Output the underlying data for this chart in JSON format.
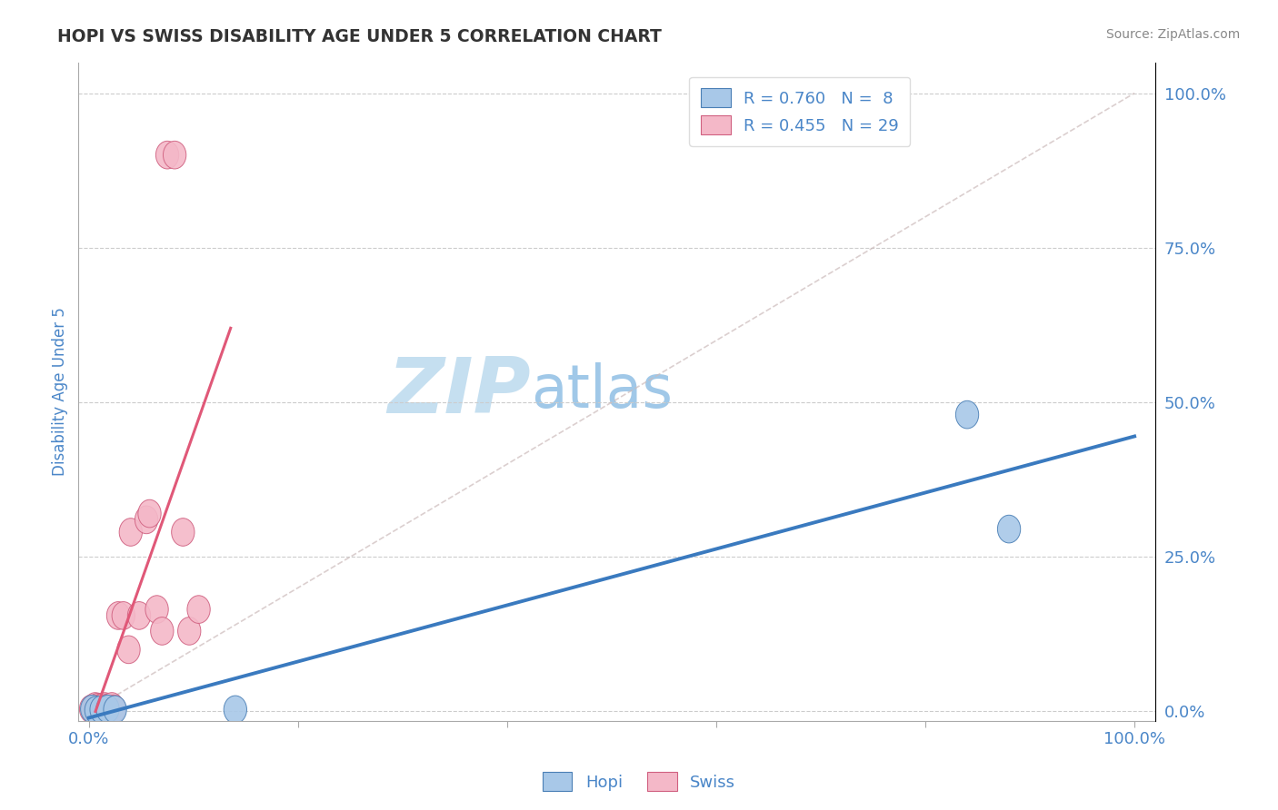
{
  "title": "HOPI VS SWISS DISABILITY AGE UNDER 5 CORRELATION CHART",
  "source": "Source: ZipAtlas.com",
  "ylabel_label": "Disability Age Under 5",
  "y_tick_labels": [
    "0.0%",
    "25.0%",
    "50.0%",
    "75.0%",
    "100.0%"
  ],
  "y_tick_values": [
    0,
    0.25,
    0.5,
    0.75,
    1.0
  ],
  "hopi_color": "#a8c8e8",
  "swiss_color": "#f4b8c8",
  "hopi_edge_color": "#4a7fb5",
  "swiss_edge_color": "#d06080",
  "hopi_line_color": "#3a7abf",
  "swiss_line_color": "#e05878",
  "diagonal_color": "#ccbbbb",
  "hopi_R": 0.76,
  "hopi_N": 8,
  "swiss_R": 0.455,
  "swiss_N": 29,
  "hopi_scatter_x": [
    0.003,
    0.007,
    0.012,
    0.018,
    0.025,
    0.14,
    0.84,
    0.88
  ],
  "hopi_scatter_y": [
    0.004,
    0.002,
    0.003,
    0.004,
    0.003,
    0.003,
    0.48,
    0.295
  ],
  "swiss_scatter_x": [
    0.002,
    0.004,
    0.006,
    0.007,
    0.008,
    0.009,
    0.01,
    0.011,
    0.013,
    0.015,
    0.016,
    0.018,
    0.02,
    0.022,
    0.024,
    0.028,
    0.033,
    0.038,
    0.04,
    0.048,
    0.055,
    0.058,
    0.065,
    0.07,
    0.075,
    0.082,
    0.09,
    0.096,
    0.105
  ],
  "swiss_scatter_y": [
    0.004,
    0.005,
    0.008,
    0.004,
    0.006,
    0.007,
    0.004,
    0.005,
    0.007,
    0.008,
    0.004,
    0.006,
    0.006,
    0.008,
    0.004,
    0.155,
    0.155,
    0.1,
    0.29,
    0.155,
    0.31,
    0.32,
    0.165,
    0.13,
    0.9,
    0.9,
    0.29,
    0.13,
    0.165
  ],
  "background_color": "#ffffff",
  "grid_color": "#cccccc",
  "title_color": "#333333",
  "axis_label_color": "#4a86c8",
  "watermark_zip_color": "#c5dff0",
  "watermark_atlas_color": "#a0c8e8",
  "watermark_fontsize": 62,
  "legend_text_color": "#4a86c8",
  "xlim": [
    -0.01,
    1.02
  ],
  "ylim": [
    -0.015,
    1.05
  ]
}
